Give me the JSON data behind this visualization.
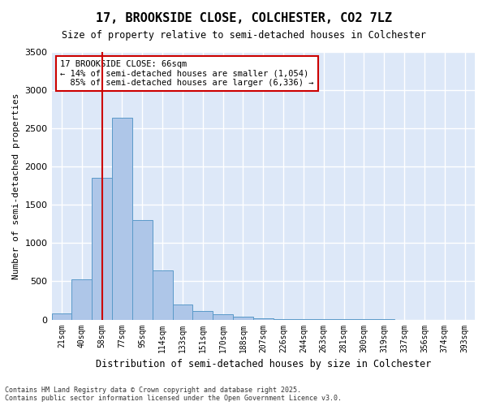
{
  "title": "17, BROOKSIDE CLOSE, COLCHESTER, CO2 7LZ",
  "subtitle": "Size of property relative to semi-detached houses in Colchester",
  "xlabel": "Distribution of semi-detached houses by size in Colchester",
  "ylabel": "Number of semi-detached properties",
  "footnote": "Contains HM Land Registry data © Crown copyright and database right 2025.\nContains public sector information licensed under the Open Government Licence v3.0.",
  "bins": [
    "21sqm",
    "40sqm",
    "58sqm",
    "77sqm",
    "95sqm",
    "114sqm",
    "133sqm",
    "151sqm",
    "170sqm",
    "188sqm",
    "207sqm",
    "226sqm",
    "244sqm",
    "263sqm",
    "281sqm",
    "300sqm",
    "319sqm",
    "337sqm",
    "356sqm",
    "374sqm",
    "393sqm"
  ],
  "values": [
    75,
    530,
    1850,
    2640,
    1300,
    640,
    200,
    110,
    70,
    40,
    20,
    10,
    5,
    3,
    2,
    1,
    1,
    0,
    0,
    0,
    0
  ],
  "bar_color": "#aec6e8",
  "bar_edge_color": "#5a9ac9",
  "background_color": "#dde8f8",
  "grid_color": "#ffffff",
  "vline_x": 2.0,
  "vline_color": "#cc0000",
  "property_label": "17 BROOKSIDE CLOSE: 66sqm",
  "smaller_pct": "14%",
  "smaller_count": "1,054",
  "larger_pct": "85%",
  "larger_count": "6,336",
  "annotation_box_color": "#cc0000",
  "ylim": [
    0,
    3500
  ],
  "yticks": [
    0,
    500,
    1000,
    1500,
    2000,
    2500,
    3000,
    3500
  ]
}
